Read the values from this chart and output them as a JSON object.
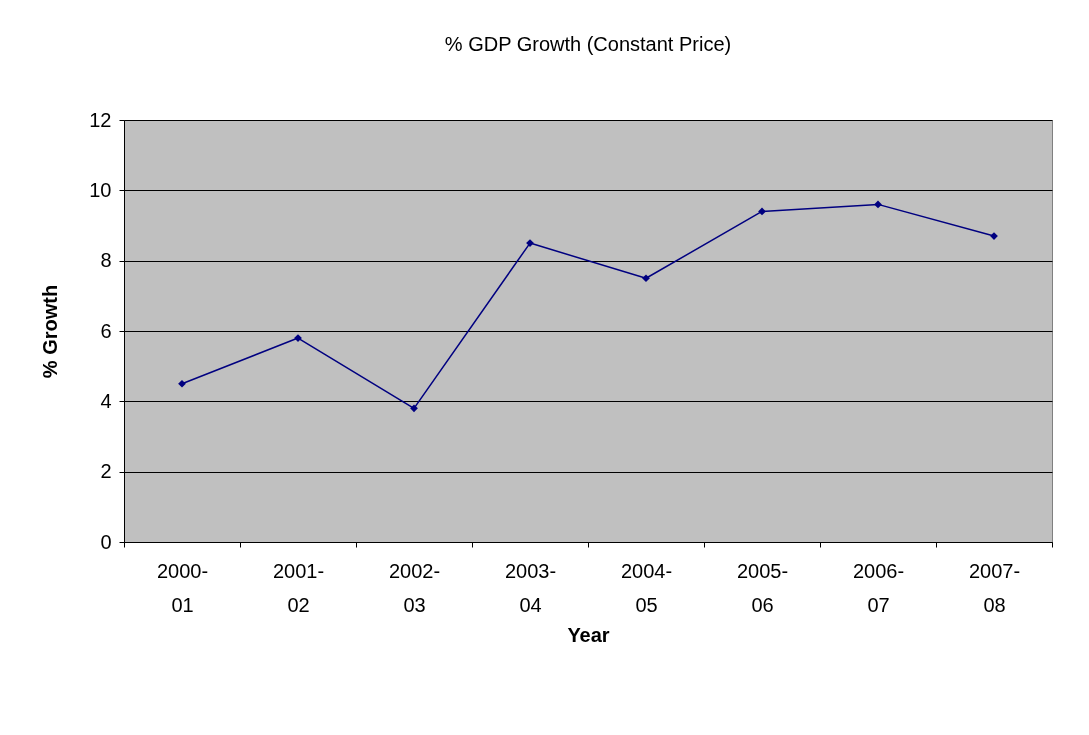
{
  "chart_data": {
    "type": "line",
    "title": "% GDP Growth (Constant Price)",
    "xlabel": "Year",
    "ylabel": "% Growth",
    "categories": [
      "2000-01",
      "2001-02",
      "2002-03",
      "2003-04",
      "2004-05",
      "2005-06",
      "2006-07",
      "2007-08"
    ],
    "series": [
      {
        "color": "#000080",
        "values": [
          4.5,
          5.8,
          3.8,
          8.5,
          7.5,
          9.4,
          9.6,
          8.7
        ]
      }
    ],
    "ylim": [
      0,
      12
    ],
    "yticks": [
      0,
      2,
      4,
      6,
      8,
      10,
      12
    ],
    "grid": "y",
    "marker": "diamond",
    "line_style": "solid"
  }
}
